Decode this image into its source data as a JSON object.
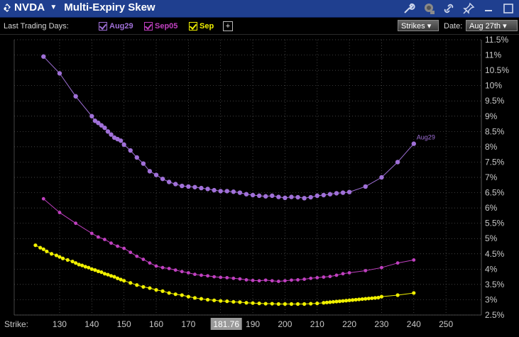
{
  "header": {
    "symbol": "NVDA",
    "title": "Multi-Expiry Skew"
  },
  "toolbar": {
    "last_trading_days_label": "Last Trading Days:",
    "expiries": [
      {
        "label": "Aug29",
        "color": "#a070d8"
      },
      {
        "label": "Sep05",
        "color": "#c040c0"
      },
      {
        "label": "Sep",
        "color": "#f0f000"
      }
    ],
    "plus_label": "+",
    "strikes_dropdown": "Strikes",
    "date_label": "Date:",
    "date_value": "Aug 27th"
  },
  "chart_data": {
    "type": "line",
    "xlabel": "Strike:",
    "xlim": [
      120,
      255
    ],
    "ylim": [
      2.5,
      11.5
    ],
    "x_ticks": [
      130,
      140,
      150,
      160,
      170,
      180,
      190,
      200,
      210,
      220,
      230,
      240,
      250
    ],
    "y_ticks": [
      "2.5%",
      "3%",
      "3.5%",
      "4%",
      "4.5%",
      "5%",
      "5.5%",
      "6%",
      "6.5%",
      "7%",
      "7.5%",
      "8%",
      "8.5%",
      "9%",
      "9.5%",
      "10%",
      "10.5%",
      "11%",
      "11.5%"
    ],
    "spot_marker": "181.76",
    "spot_value": 181.76,
    "series": [
      {
        "name": "Aug29",
        "end_label": "Aug29",
        "color": "#a070d8",
        "points": [
          [
            125,
            10.95
          ],
          [
            130,
            10.4
          ],
          [
            135,
            9.65
          ],
          [
            140,
            9.0
          ],
          [
            141,
            8.85
          ],
          [
            142,
            8.78
          ],
          [
            143,
            8.7
          ],
          [
            144,
            8.62
          ],
          [
            145,
            8.5
          ],
          [
            146,
            8.4
          ],
          [
            147,
            8.3
          ],
          [
            148,
            8.25
          ],
          [
            149,
            8.2
          ],
          [
            150,
            8.07
          ],
          [
            152,
            7.88
          ],
          [
            154,
            7.65
          ],
          [
            156,
            7.45
          ],
          [
            158,
            7.2
          ],
          [
            160,
            7.08
          ],
          [
            162,
            6.95
          ],
          [
            164,
            6.85
          ],
          [
            166,
            6.78
          ],
          [
            168,
            6.72
          ],
          [
            170,
            6.7
          ],
          [
            172,
            6.68
          ],
          [
            174,
            6.65
          ],
          [
            176,
            6.62
          ],
          [
            178,
            6.58
          ],
          [
            180,
            6.55
          ],
          [
            182,
            6.55
          ],
          [
            184,
            6.53
          ],
          [
            186,
            6.5
          ],
          [
            188,
            6.45
          ],
          [
            190,
            6.42
          ],
          [
            192,
            6.4
          ],
          [
            194,
            6.38
          ],
          [
            196,
            6.4
          ],
          [
            198,
            6.36
          ],
          [
            200,
            6.33
          ],
          [
            202,
            6.36
          ],
          [
            204,
            6.35
          ],
          [
            206,
            6.32
          ],
          [
            208,
            6.35
          ],
          [
            210,
            6.4
          ],
          [
            212,
            6.42
          ],
          [
            214,
            6.45
          ],
          [
            216,
            6.48
          ],
          [
            218,
            6.5
          ],
          [
            220,
            6.52
          ],
          [
            225,
            6.7
          ],
          [
            230,
            7.0
          ],
          [
            235,
            7.5
          ],
          [
            240,
            8.1
          ]
        ]
      },
      {
        "name": "Sep05",
        "color": "#c040c0",
        "points": [
          [
            125,
            6.3
          ],
          [
            130,
            5.85
          ],
          [
            135,
            5.5
          ],
          [
            140,
            5.17
          ],
          [
            142,
            5.05
          ],
          [
            144,
            4.97
          ],
          [
            146,
            4.85
          ],
          [
            148,
            4.75
          ],
          [
            150,
            4.68
          ],
          [
            152,
            4.55
          ],
          [
            154,
            4.42
          ],
          [
            156,
            4.32
          ],
          [
            158,
            4.2
          ],
          [
            160,
            4.1
          ],
          [
            162,
            4.05
          ],
          [
            164,
            4.02
          ],
          [
            166,
            3.97
          ],
          [
            168,
            3.92
          ],
          [
            170,
            3.88
          ],
          [
            172,
            3.83
          ],
          [
            174,
            3.8
          ],
          [
            176,
            3.78
          ],
          [
            178,
            3.75
          ],
          [
            180,
            3.73
          ],
          [
            182,
            3.72
          ],
          [
            184,
            3.7
          ],
          [
            186,
            3.68
          ],
          [
            188,
            3.65
          ],
          [
            190,
            3.63
          ],
          [
            192,
            3.62
          ],
          [
            194,
            3.64
          ],
          [
            196,
            3.62
          ],
          [
            198,
            3.6
          ],
          [
            200,
            3.62
          ],
          [
            202,
            3.64
          ],
          [
            204,
            3.65
          ],
          [
            206,
            3.67
          ],
          [
            208,
            3.7
          ],
          [
            210,
            3.72
          ],
          [
            212,
            3.74
          ],
          [
            214,
            3.76
          ],
          [
            216,
            3.8
          ],
          [
            218,
            3.85
          ],
          [
            220,
            3.88
          ],
          [
            225,
            3.95
          ],
          [
            230,
            4.05
          ],
          [
            235,
            4.2
          ],
          [
            240,
            4.3
          ]
        ]
      },
      {
        "name": "Sep",
        "color": "#f0f000",
        "points": [
          [
            122.5,
            4.78
          ],
          [
            124,
            4.7
          ],
          [
            125,
            4.65
          ],
          [
            126,
            4.58
          ],
          [
            127.5,
            4.5
          ],
          [
            129,
            4.45
          ],
          [
            130,
            4.4
          ],
          [
            131,
            4.35
          ],
          [
            132.5,
            4.3
          ],
          [
            134,
            4.25
          ],
          [
            135,
            4.2
          ],
          [
            136,
            4.15
          ],
          [
            137,
            4.12
          ],
          [
            138,
            4.08
          ],
          [
            139,
            4.05
          ],
          [
            140,
            4.0
          ],
          [
            141,
            3.97
          ],
          [
            142,
            3.93
          ],
          [
            143,
            3.9
          ],
          [
            144,
            3.85
          ],
          [
            145,
            3.82
          ],
          [
            146,
            3.78
          ],
          [
            147,
            3.75
          ],
          [
            148,
            3.7
          ],
          [
            149,
            3.66
          ],
          [
            150,
            3.62
          ],
          [
            152,
            3.55
          ],
          [
            154,
            3.48
          ],
          [
            156,
            3.42
          ],
          [
            158,
            3.38
          ],
          [
            160,
            3.32
          ],
          [
            162,
            3.28
          ],
          [
            164,
            3.22
          ],
          [
            166,
            3.18
          ],
          [
            168,
            3.15
          ],
          [
            170,
            3.1
          ],
          [
            172,
            3.06
          ],
          [
            174,
            3.03
          ],
          [
            176,
            3.0
          ],
          [
            178,
            2.98
          ],
          [
            180,
            2.96
          ],
          [
            182,
            2.95
          ],
          [
            184,
            2.93
          ],
          [
            186,
            2.92
          ],
          [
            188,
            2.9
          ],
          [
            190,
            2.89
          ],
          [
            192,
            2.88
          ],
          [
            194,
            2.87
          ],
          [
            196,
            2.87
          ],
          [
            198,
            2.86
          ],
          [
            200,
            2.86
          ],
          [
            202,
            2.86
          ],
          [
            204,
            2.86
          ],
          [
            206,
            2.86
          ],
          [
            208,
            2.87
          ],
          [
            210,
            2.88
          ],
          [
            212,
            2.9
          ],
          [
            213,
            2.91
          ],
          [
            214,
            2.92
          ],
          [
            215,
            2.93
          ],
          [
            216,
            2.94
          ],
          [
            217,
            2.95
          ],
          [
            218,
            2.96
          ],
          [
            219,
            2.97
          ],
          [
            220,
            2.98
          ],
          [
            221,
            2.99
          ],
          [
            222,
            3.0
          ],
          [
            223,
            3.01
          ],
          [
            224,
            3.02
          ],
          [
            225,
            3.03
          ],
          [
            226,
            3.04
          ],
          [
            227,
            3.05
          ],
          [
            228,
            3.06
          ],
          [
            229,
            3.07
          ],
          [
            230,
            3.1
          ],
          [
            235,
            3.15
          ],
          [
            240,
            3.22
          ]
        ]
      }
    ]
  }
}
